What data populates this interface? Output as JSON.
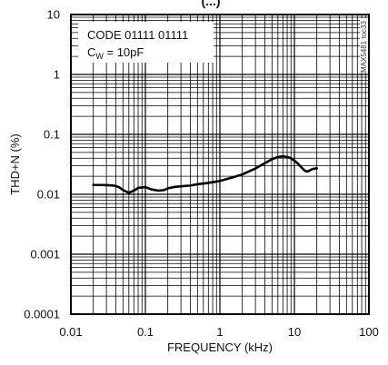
{
  "chart_data": {
    "type": "line",
    "title": "",
    "title_fragment": "(...)",
    "xlabel": "FREQUENCY (kHz)",
    "ylabel": "THD+N (%)",
    "x_scale": "log",
    "y_scale": "log",
    "xlim": [
      0.01,
      100
    ],
    "ylim": [
      0.0001,
      10
    ],
    "x_ticks": [
      0.01,
      0.1,
      1,
      10,
      100
    ],
    "x_tick_labels": [
      "0.01",
      "0.1",
      "1",
      "10",
      "100"
    ],
    "y_ticks": [
      0.0001,
      0.001,
      0.01,
      0.1,
      1,
      10
    ],
    "y_tick_labels": [
      "0.0001",
      "0.001",
      "0.01",
      "0.1",
      "1",
      "10"
    ],
    "grid": true,
    "legend": {
      "placement": "top-left",
      "lines": [
        "CODE 01111 01111",
        "C",
        "W",
        " = 10pF"
      ]
    },
    "figure_id": "MAX5481 toc33",
    "series": [
      {
        "x": [
          0.02,
          0.025,
          0.03,
          0.035,
          0.04,
          0.045,
          0.05,
          0.06,
          0.07,
          0.08,
          0.1,
          0.12,
          0.15,
          0.18,
          0.2,
          0.25,
          0.3,
          0.4,
          0.5,
          0.7,
          1,
          1.5,
          2,
          3,
          4,
          5,
          6,
          7,
          8,
          9,
          10,
          11,
          12,
          13,
          14,
          15,
          16,
          17,
          18,
          20
        ],
        "values": [
          0.0143,
          0.0143,
          0.0142,
          0.0141,
          0.0138,
          0.013,
          0.0118,
          0.0106,
          0.0115,
          0.0128,
          0.0132,
          0.0121,
          0.0115,
          0.0118,
          0.0126,
          0.0133,
          0.0136,
          0.014,
          0.0147,
          0.0155,
          0.0167,
          0.0192,
          0.0215,
          0.027,
          0.033,
          0.0385,
          0.042,
          0.043,
          0.042,
          0.04,
          0.0365,
          0.033,
          0.0295,
          0.0265,
          0.0245,
          0.024,
          0.025,
          0.026,
          0.0266,
          0.0272
        ]
      }
    ]
  }
}
